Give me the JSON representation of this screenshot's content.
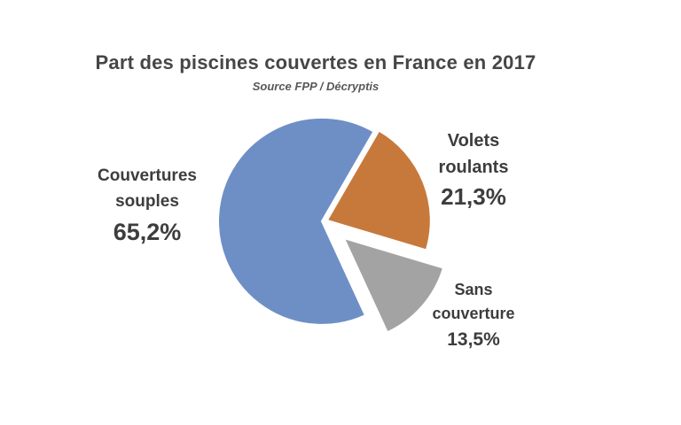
{
  "chart_data": {
    "type": "pie",
    "title": "Part des piscines couvertes en France en 2017",
    "source": "Source FPP / Décryptis",
    "units": "%",
    "direction": "clockwise",
    "start_angle_deg": 30,
    "legend": "none",
    "background_color": "#ffffff",
    "label_text_color": "#3d3d3d",
    "slices": [
      {
        "label": "Volets roulants",
        "label_lines": [
          "Volets",
          "roulants"
        ],
        "value": 21.3,
        "display_value": "21,3%",
        "color": "#C7793B",
        "exploded": false
      },
      {
        "label": "Sans couverture",
        "label_lines": [
          "Sans",
          "couverture"
        ],
        "value": 13.5,
        "display_value": "13,5%",
        "color": "#A3A3A3",
        "exploded": true
      },
      {
        "label": "Couvertures souples",
        "label_lines": [
          "Couvertures",
          "souples"
        ],
        "value": 65.2,
        "display_value": "65,2%",
        "color": "#6E8FC6",
        "exploded": false
      }
    ]
  }
}
